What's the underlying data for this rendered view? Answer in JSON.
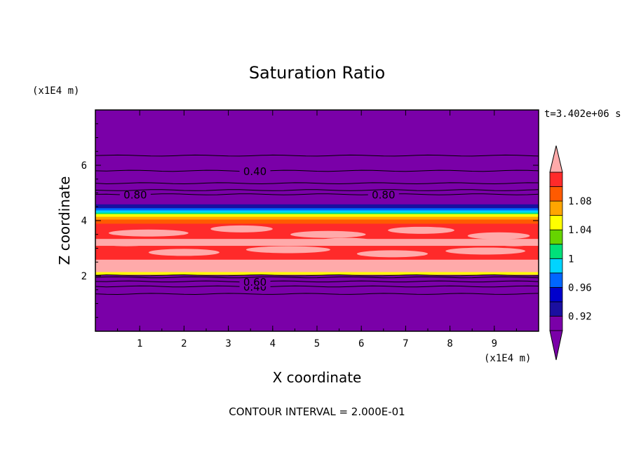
{
  "chart_data": {
    "type": "heatmap",
    "title": "Saturation Ratio",
    "xlabel": "X coordinate",
    "ylabel": "Z coordinate",
    "x_unit": "(x1E4 m)",
    "y_unit": "(x1E4 m)",
    "time_label": "t=3.402e+06 s",
    "footer": "CONTOUR INTERVAL = 2.000E-01",
    "xlim": [
      0,
      10
    ],
    "ylim": [
      0,
      8
    ],
    "x_ticks": [
      "1",
      "2",
      "3",
      "4",
      "5",
      "6",
      "7",
      "8",
      "9"
    ],
    "y_ticks": [
      "2",
      "4",
      "6"
    ],
    "grid": false,
    "legend": "right",
    "colorbar": {
      "labels": [
        "0.92",
        "0.96",
        "1",
        "1.04",
        "1.08"
      ],
      "levels": [
        {
          "value": 0.9,
          "color": "#7a00a8"
        },
        {
          "value": 0.92,
          "color": "#1a0fa0"
        },
        {
          "value": 0.94,
          "color": "#0000cc"
        },
        {
          "value": 0.96,
          "color": "#0066ff"
        },
        {
          "value": 0.98,
          "color": "#00d4ff"
        },
        {
          "value": 1.0,
          "color": "#00e07a"
        },
        {
          "value": 1.02,
          "color": "#66d400"
        },
        {
          "value": 1.04,
          "color": "#ffff00"
        },
        {
          "value": 1.06,
          "color": "#ffa500"
        },
        {
          "value": 1.08,
          "color": "#ff5a00"
        },
        {
          "value": 1.1,
          "color": "#ff2a2a"
        },
        {
          "value": 1.12,
          "color": "#ffaaaa"
        }
      ]
    },
    "bands": [
      {
        "z0": 0.0,
        "z1": 2.05,
        "color": "#7a00a8"
      },
      {
        "z0": 2.05,
        "z1": 2.15,
        "color": "#ffff00"
      },
      {
        "z0": 2.15,
        "z1": 2.6,
        "color": "#ffaaaa"
      },
      {
        "z0": 2.6,
        "z1": 3.1,
        "color": "#ff2a2a"
      },
      {
        "z0": 3.1,
        "z1": 3.35,
        "color": "#ffaaaa"
      },
      {
        "z0": 3.35,
        "z1": 3.9,
        "color": "#ff2a2a"
      },
      {
        "z0": 3.9,
        "z1": 4.05,
        "color": "#ff5a00"
      },
      {
        "z0": 4.05,
        "z1": 4.15,
        "color": "#ffa500"
      },
      {
        "z0": 4.15,
        "z1": 4.25,
        "color": "#ffff00"
      },
      {
        "z0": 4.25,
        "z1": 4.3,
        "color": "#00e07a"
      },
      {
        "z0": 4.3,
        "z1": 4.38,
        "color": "#00d4ff"
      },
      {
        "z0": 4.38,
        "z1": 4.46,
        "color": "#0066ff"
      },
      {
        "z0": 4.46,
        "z1": 4.6,
        "color": "#1a0fa0"
      },
      {
        "z0": 4.6,
        "z1": 8.0,
        "color": "#7a00a8"
      }
    ],
    "pink_streaks": [
      {
        "x": 0.3,
        "z": 3.55,
        "w": 1.8
      },
      {
        "x": 2.6,
        "z": 3.7,
        "w": 1.4
      },
      {
        "x": 4.4,
        "z": 3.5,
        "w": 1.7
      },
      {
        "x": 6.6,
        "z": 3.65,
        "w": 1.5
      },
      {
        "x": 8.4,
        "z": 3.45,
        "w": 1.4
      },
      {
        "x": 1.2,
        "z": 2.85,
        "w": 1.6
      },
      {
        "x": 3.4,
        "z": 2.95,
        "w": 1.9
      },
      {
        "x": 5.9,
        "z": 2.8,
        "w": 1.6
      },
      {
        "x": 7.9,
        "z": 2.9,
        "w": 1.8
      },
      {
        "x": 0.1,
        "z": 3.2,
        "w": 1.2
      },
      {
        "x": 5.0,
        "z": 3.25,
        "w": 1.3
      },
      {
        "x": 9.0,
        "z": 3.2,
        "w": 0.9
      }
    ],
    "contours": [
      {
        "z": 1.35,
        "label": ""
      },
      {
        "z": 1.62,
        "label": "0.40"
      },
      {
        "z": 1.8,
        "label": "0.60"
      },
      {
        "z": 1.95,
        "label": ""
      },
      {
        "z": 2.02,
        "label": ""
      },
      {
        "z": 4.95,
        "label": "0.80"
      },
      {
        "z": 5.1,
        "label": ""
      },
      {
        "z": 5.35,
        "label": ""
      },
      {
        "z": 5.8,
        "label": "0.40"
      },
      {
        "z": 6.35,
        "label": ""
      }
    ]
  }
}
